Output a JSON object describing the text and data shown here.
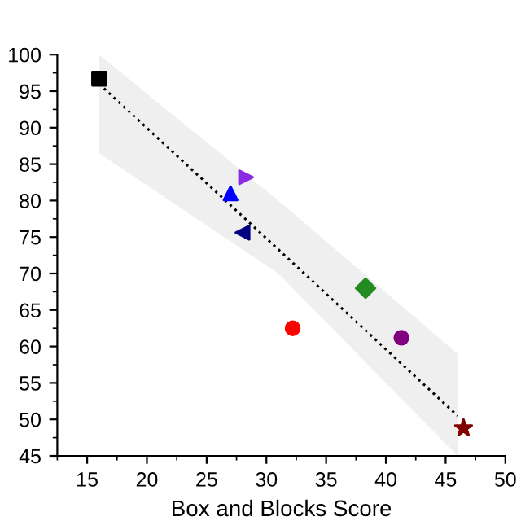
{
  "chart_data": {
    "type": "scatter",
    "xlabel": "Box and Blocks Score",
    "xlim": [
      12.5,
      50
    ],
    "xticks": [
      15,
      20,
      25,
      30,
      35,
      40,
      45,
      50
    ],
    "ylim": [
      45,
      100
    ],
    "yticks": [
      45,
      50,
      55,
      60,
      65,
      70,
      75,
      80,
      85,
      90,
      95,
      100
    ],
    "grid": false,
    "series": [
      {
        "color": "#000000",
        "marker": "square",
        "x": [
          16
        ],
        "values": [
          96.7
        ]
      },
      {
        "color": "#ff0000",
        "marker": "circle",
        "x": [
          32.2
        ],
        "values": [
          62.5
        ]
      },
      {
        "color": "#0000ff",
        "marker": "triangle",
        "x": [
          27
        ],
        "values": [
          81
        ]
      },
      {
        "color": "#228b22",
        "marker": "diamond",
        "x": [
          38.3
        ],
        "values": [
          68
        ]
      },
      {
        "color": "#000080",
        "marker": "triangle_left",
        "x": [
          28
        ],
        "values": [
          75.6
        ]
      },
      {
        "color": "#8a2be2",
        "marker": "triangle_right",
        "x": [
          28.3
        ],
        "values": [
          83.2
        ]
      },
      {
        "color": "#800080",
        "marker": "circle",
        "x": [
          41.3
        ],
        "values": [
          61.2
        ]
      },
      {
        "color": "#800000",
        "marker": "star",
        "x": [
          46.5
        ],
        "values": [
          48.8
        ]
      },
      {
        "type": "line",
        "color": "#000000",
        "line_style": "dotted",
        "marker": "none",
        "x": [
          16,
          31,
          46
        ],
        "values": [
          96,
          73.3,
          50.5
        ],
        "lower": [
          86.5,
          70,
          45
        ],
        "upper": [
          100,
          80,
          59
        ]
      }
    ]
  }
}
